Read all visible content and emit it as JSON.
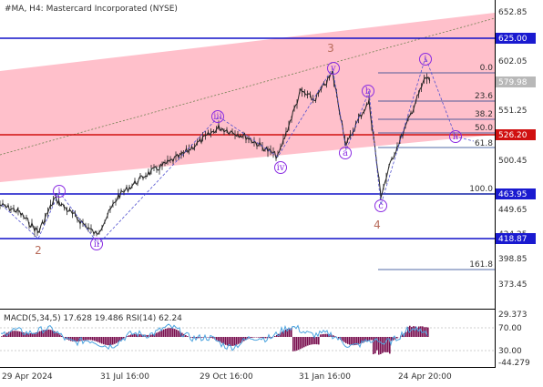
{
  "header": {
    "symbol_info": "#MA, H4:  Mastercard Incorporated (NYSE)"
  },
  "colors": {
    "channel_fill": "#ffc0cb",
    "blue_line": "#1010c8",
    "red_line": "#d01010",
    "price_line": "#222222",
    "wave_label": "#8a2be2",
    "wave_number": "#b86b5a",
    "fib_text": "#1a3a8a",
    "price_tag_blue": "#1a1ad0",
    "price_tag_red": "#d01010",
    "price_tag_current": "#b8b8b8",
    "macd_hist": "#7a1050",
    "rsi_line": "#4aa3df"
  },
  "price_axis": {
    "ticks": [
      "652.85",
      "602.05",
      "551.25",
      "500.45",
      "449.65",
      "424.25",
      "398.85",
      "373.45"
    ],
    "tags": [
      {
        "label": "625.00",
        "kind": "blue"
      },
      {
        "label": "579.98",
        "kind": "current"
      },
      {
        "label": "526.20",
        "kind": "red"
      },
      {
        "label": "463.95",
        "kind": "blue"
      },
      {
        "label": "418.87",
        "kind": "blue"
      }
    ]
  },
  "fibonacci": {
    "levels": [
      "0.0",
      "23.6",
      "38.2",
      "50.0",
      "61.8",
      "100.0",
      "161.8"
    ]
  },
  "waves": {
    "circled": [
      "i",
      "ii",
      "iii",
      "iv",
      "v",
      "a",
      "b",
      "c",
      "i",
      "ii"
    ],
    "numbers": [
      "2",
      "3",
      "4"
    ]
  },
  "indicator": {
    "caption": "MACD(5,34,5) 17.628 19.486 RSI(14) 62.24",
    "axis": [
      "29.373",
      "70.00",
      "30.00",
      "-44.279"
    ]
  },
  "time_axis": {
    "labels": [
      "29 Apr 2024",
      "31 Jul 16:00",
      "29 Oct 16:00",
      "31 Jan 16:00",
      "24 Apr 20:00"
    ]
  }
}
